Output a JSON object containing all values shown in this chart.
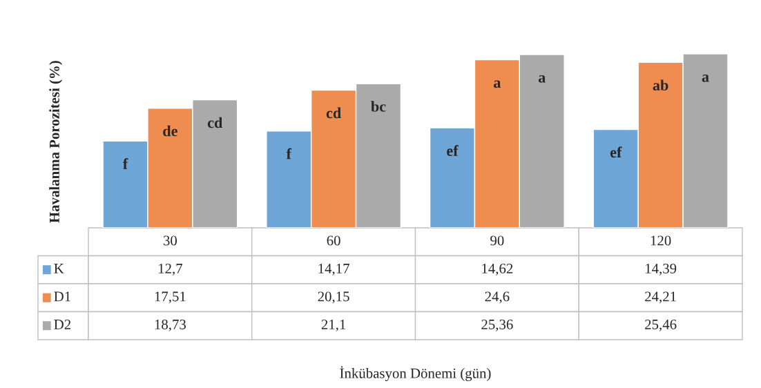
{
  "chart_data": {
    "type": "bar",
    "ylabel": "Havalanma Porozitesi (%)",
    "categories": [
      "30",
      "60",
      "90",
      "120"
    ],
    "series": [
      {
        "name": "K",
        "color": "#6fa6d8",
        "values": [
          12.7,
          14.17,
          14.62,
          14.39
        ],
        "value_labels": [
          "12,7",
          "14,17",
          "14,62",
          "14,39"
        ]
      },
      {
        "name": "D1",
        "color": "#ee8d4f",
        "values": [
          17.51,
          20.15,
          24.6,
          24.21
        ],
        "value_labels": [
          "17,51",
          "20,15",
          "24,6",
          "24,21"
        ]
      },
      {
        "name": "D2",
        "color": "#aaaaaa",
        "values": [
          18.73,
          21.1,
          25.36,
          25.46
        ],
        "value_labels": [
          "18,73",
          "21,1",
          "25,36",
          "25,46"
        ]
      }
    ],
    "legend": "bottom",
    "annotations": [
      "f",
      "de",
      "cd",
      "f",
      "cd",
      "bc",
      "ef",
      "a",
      "a",
      "ef",
      "ab",
      "a",
      "İnkübasyon Dönemi (gün)"
    ]
  }
}
